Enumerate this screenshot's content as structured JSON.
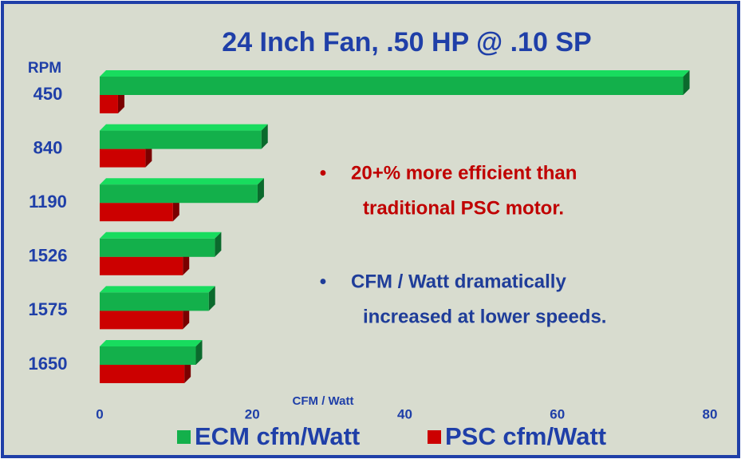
{
  "chart_data": {
    "type": "bar",
    "orientation": "horizontal",
    "title": "24 Inch Fan, .50 HP @ .10 SP",
    "category_axis_label": "RPM",
    "x_axis_label": "CFM / Watt",
    "categories": [
      "450",
      "840",
      "1190",
      "1526",
      "1575",
      "1650"
    ],
    "series": [
      {
        "name": "ECM cfm/Watt",
        "color": "#13b04b",
        "values": [
          76.5,
          21.2,
          20.7,
          15.1,
          14.3,
          12.6
        ]
      },
      {
        "name": "PSC cfm/Watt",
        "color": "#cc0000",
        "values": [
          2.4,
          6,
          9.6,
          10.9,
          10.9,
          11.1
        ]
      }
    ],
    "xlim": [
      0,
      80
    ],
    "xticks": [
      0,
      20,
      40,
      60,
      80
    ],
    "annotations": [
      {
        "bullet": "•",
        "lines": [
          "20+% more efficient than",
          "traditional PSC motor."
        ],
        "color": "#c00000"
      },
      {
        "bullet": "•",
        "lines": [
          "CFM / Watt dramatically",
          "increased at lower speeds."
        ],
        "color": "#1f3d99"
      }
    ]
  }
}
